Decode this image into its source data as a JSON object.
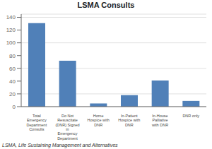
{
  "chart_data": {
    "type": "bar",
    "title": "LSMA Consults",
    "categories": [
      "Total\nEmergency\nDepartment\nConsults",
      "Do Not\nResuscitate\n(DNR) Signed\nin\nEmergency\nDepartment",
      "Home\nHospice with\nDNR",
      "In-Patient\nHospice with\nDNR",
      "In-House\nPalliative\nwith DNR",
      "DNR only"
    ],
    "values": [
      131,
      72,
      5,
      18,
      41,
      9
    ],
    "color": "#5080b8",
    "ylim": [
      0,
      145
    ],
    "yticks": [
      0,
      20,
      40,
      60,
      80,
      100,
      120,
      140
    ],
    "grid": true,
    "annotations": [
      "LSMA, Life Sustaining Management and Alternatives"
    ]
  }
}
